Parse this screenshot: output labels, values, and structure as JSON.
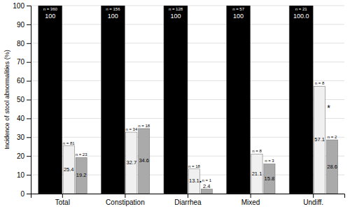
{
  "chart_data": {
    "type": "bar",
    "categories": [
      "Total",
      "Constipation",
      "Diarrhea",
      "Mixed",
      "Undiff."
    ],
    "series": [
      {
        "color": "#000000",
        "values": [
          100,
          100,
          100,
          100,
          100.0
        ],
        "value_labels": [
          "100",
          "100",
          "100",
          "100",
          "100.0"
        ],
        "n_labels": [
          "n = 360",
          "n = 156",
          "n = 128",
          "n = 57",
          "n = 21"
        ]
      },
      {
        "color": "#f0f0f0",
        "values": [
          25.4,
          32.7,
          13.1,
          21.1,
          57.1
        ],
        "value_labels": [
          "25.4",
          "32.7",
          "13.1",
          "21.1",
          "57.1"
        ],
        "n_labels": [
          "n = 81",
          "n = 34",
          "n = 18",
          "n = 8",
          "n = 8"
        ]
      },
      {
        "color": "#aaaaaa",
        "values": [
          19.2,
          34.6,
          2.4,
          15.8,
          28.6
        ],
        "value_labels": [
          "19.2",
          "34.6",
          "2.4",
          "15.8",
          "28.6"
        ],
        "n_labels": [
          "n = 23",
          "n = 18",
          "n = 1",
          "n = 3",
          "n = 2"
        ]
      }
    ],
    "annotations": [
      {
        "text": "•",
        "category": "Diarrhea",
        "y": 6.5
      },
      {
        "text": "*",
        "category": "Undiff.",
        "y": 45
      }
    ],
    "ylabel": "Incidence of stool abnormalities (%)",
    "ylim": [
      0,
      100
    ],
    "yticks": [
      0,
      10,
      20,
      30,
      40,
      50,
      60,
      70,
      80,
      90,
      100
    ],
    "grid": true,
    "data_labels": true
  }
}
